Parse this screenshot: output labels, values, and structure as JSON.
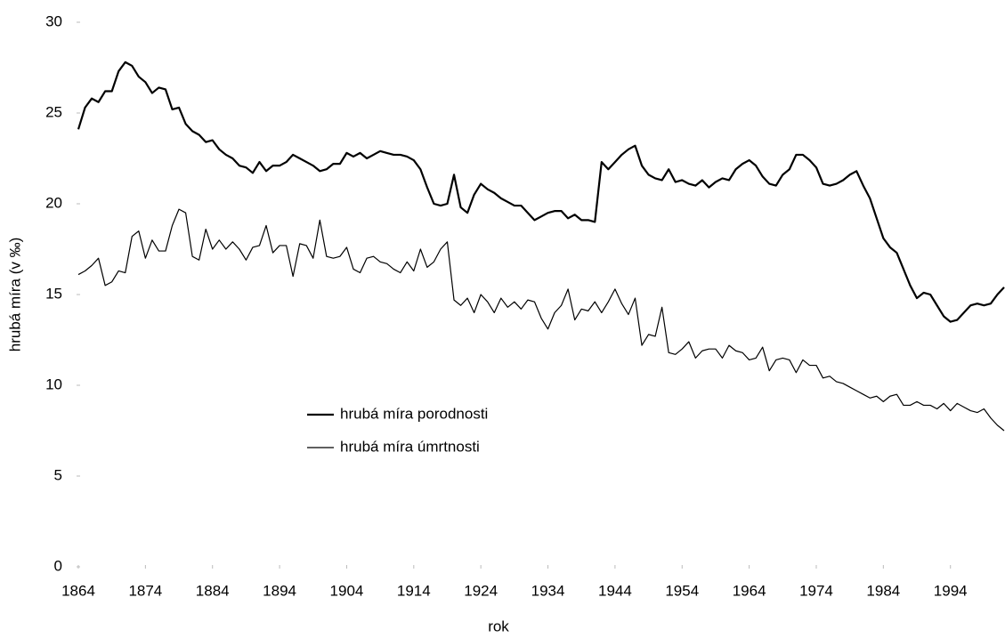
{
  "chart_data": {
    "type": "line",
    "xlabel": "rok",
    "ylabel": "hrubá míra (v ‰)",
    "x": [
      1864,
      1865,
      1866,
      1867,
      1868,
      1869,
      1870,
      1871,
      1872,
      1873,
      1874,
      1875,
      1876,
      1877,
      1878,
      1879,
      1880,
      1881,
      1882,
      1883,
      1884,
      1885,
      1886,
      1887,
      1888,
      1889,
      1890,
      1891,
      1892,
      1893,
      1894,
      1895,
      1896,
      1897,
      1898,
      1899,
      1900,
      1901,
      1902,
      1903,
      1904,
      1905,
      1906,
      1907,
      1908,
      1909,
      1910,
      1911,
      1912,
      1913,
      1914,
      1915,
      1916,
      1917,
      1918,
      1919,
      1920,
      1921,
      1922,
      1923,
      1924,
      1925,
      1926,
      1927,
      1928,
      1929,
      1930,
      1931,
      1932,
      1933,
      1934,
      1935,
      1936,
      1937,
      1938,
      1939,
      1940,
      1941,
      1942,
      1943,
      1944,
      1945,
      1946,
      1947,
      1948,
      1949,
      1950,
      1951,
      1952,
      1953,
      1954,
      1955,
      1956,
      1957,
      1958,
      1959,
      1960,
      1961,
      1962,
      1963,
      1964,
      1965,
      1966,
      1967,
      1968,
      1969,
      1970,
      1971,
      1972,
      1973,
      1974,
      1975,
      1976,
      1977,
      1978,
      1979,
      1980,
      1981,
      1982,
      1983,
      1984,
      1985,
      1986,
      1987,
      1988,
      1989,
      1990,
      1991,
      1992,
      1993,
      1994,
      1995,
      1996,
      1997,
      1998,
      1999,
      2000,
      2001,
      2002
    ],
    "series": [
      {
        "name": "hrubá míra porodnosti",
        "color": "#000000",
        "width": 2.2,
        "values": [
          24.1,
          25.3,
          25.8,
          25.6,
          26.2,
          26.2,
          27.3,
          27.8,
          27.6,
          27.0,
          26.7,
          26.1,
          26.4,
          26.3,
          25.2,
          25.3,
          24.4,
          24.0,
          23.8,
          23.4,
          23.5,
          23.0,
          22.7,
          22.5,
          22.1,
          22.0,
          21.7,
          22.3,
          21.8,
          22.1,
          22.1,
          22.3,
          22.7,
          22.5,
          22.3,
          22.1,
          21.8,
          21.9,
          22.2,
          22.2,
          22.8,
          22.6,
          22.8,
          22.5,
          22.7,
          22.9,
          22.8,
          22.7,
          22.7,
          22.6,
          22.4,
          21.9,
          20.9,
          20.0,
          19.9,
          20.0,
          21.6,
          19.8,
          19.5,
          20.5,
          21.1,
          20.8,
          20.6,
          20.3,
          20.1,
          19.9,
          19.9,
          19.5,
          19.1,
          19.3,
          19.5,
          19.6,
          19.6,
          19.2,
          19.4,
          19.1,
          19.1,
          19.0,
          22.3,
          21.9,
          22.3,
          22.7,
          23.0,
          23.2,
          22.1,
          21.6,
          21.4,
          21.3,
          21.9,
          21.2,
          21.3,
          21.1,
          21.0,
          21.3,
          20.9,
          21.2,
          21.4,
          21.3,
          21.9,
          22.2,
          22.4,
          22.1,
          21.5,
          21.1,
          21.0,
          21.6,
          21.9,
          22.7,
          22.7,
          22.4,
          22.0,
          21.1,
          21.0,
          21.1,
          21.3,
          21.6,
          21.8,
          21.0,
          20.3,
          19.2,
          18.1,
          17.6,
          17.3,
          16.4,
          15.5,
          14.8,
          15.1,
          15.0,
          14.4,
          13.8,
          13.5,
          13.6,
          14.0,
          14.4,
          14.5,
          14.4,
          14.5,
          15.0,
          15.4
        ]
      },
      {
        "name": "hrubá míra úmrtnosti",
        "color": "#000000",
        "width": 1.2,
        "values": [
          16.1,
          16.3,
          16.6,
          17.0,
          15.5,
          15.7,
          16.3,
          16.2,
          18.2,
          18.5,
          17.0,
          18.0,
          17.4,
          17.4,
          18.8,
          19.7,
          19.5,
          17.1,
          16.9,
          18.6,
          17.5,
          18.0,
          17.5,
          17.9,
          17.5,
          16.9,
          17.6,
          17.7,
          18.8,
          17.3,
          17.7,
          17.7,
          16.0,
          17.8,
          17.7,
          17.0,
          19.1,
          17.1,
          17.0,
          17.1,
          17.6,
          16.4,
          16.2,
          17.0,
          17.1,
          16.8,
          16.7,
          16.4,
          16.2,
          16.8,
          16.3,
          17.5,
          16.5,
          16.8,
          17.5,
          17.9,
          14.7,
          14.4,
          14.8,
          14.0,
          15.0,
          14.6,
          14.0,
          14.8,
          14.3,
          14.6,
          14.2,
          14.7,
          14.6,
          13.7,
          13.1,
          14.0,
          14.4,
          15.3,
          13.6,
          14.2,
          14.1,
          14.6,
          14.0,
          14.6,
          15.3,
          14.5,
          13.9,
          14.8,
          12.2,
          12.8,
          12.7,
          14.3,
          11.8,
          11.7,
          12.0,
          12.4,
          11.5,
          11.9,
          12.0,
          12.0,
          11.5,
          12.2,
          11.9,
          11.8,
          11.4,
          11.5,
          12.1,
          10.8,
          11.4,
          11.5,
          11.4,
          10.7,
          11.4,
          11.1,
          11.1,
          10.4,
          10.5,
          10.2,
          10.1,
          9.9,
          9.7,
          9.5,
          9.3,
          9.4,
          9.1,
          9.4,
          9.5,
          8.9,
          8.9,
          9.1,
          8.9,
          8.9,
          8.7,
          9.0,
          8.6,
          9.0,
          8.8,
          8.6,
          8.5,
          8.7,
          8.2,
          7.8,
          7.5
        ]
      }
    ],
    "xlim": [
      1864,
      2002
    ],
    "xticks": [
      1864,
      1874,
      1884,
      1894,
      1904,
      1914,
      1924,
      1934,
      1944,
      1954,
      1964,
      1974,
      1984,
      1994
    ],
    "ylim": [
      0,
      30
    ],
    "yticks": [
      0,
      5,
      10,
      15,
      20,
      25,
      30
    ],
    "grid": false,
    "legend": "center"
  }
}
